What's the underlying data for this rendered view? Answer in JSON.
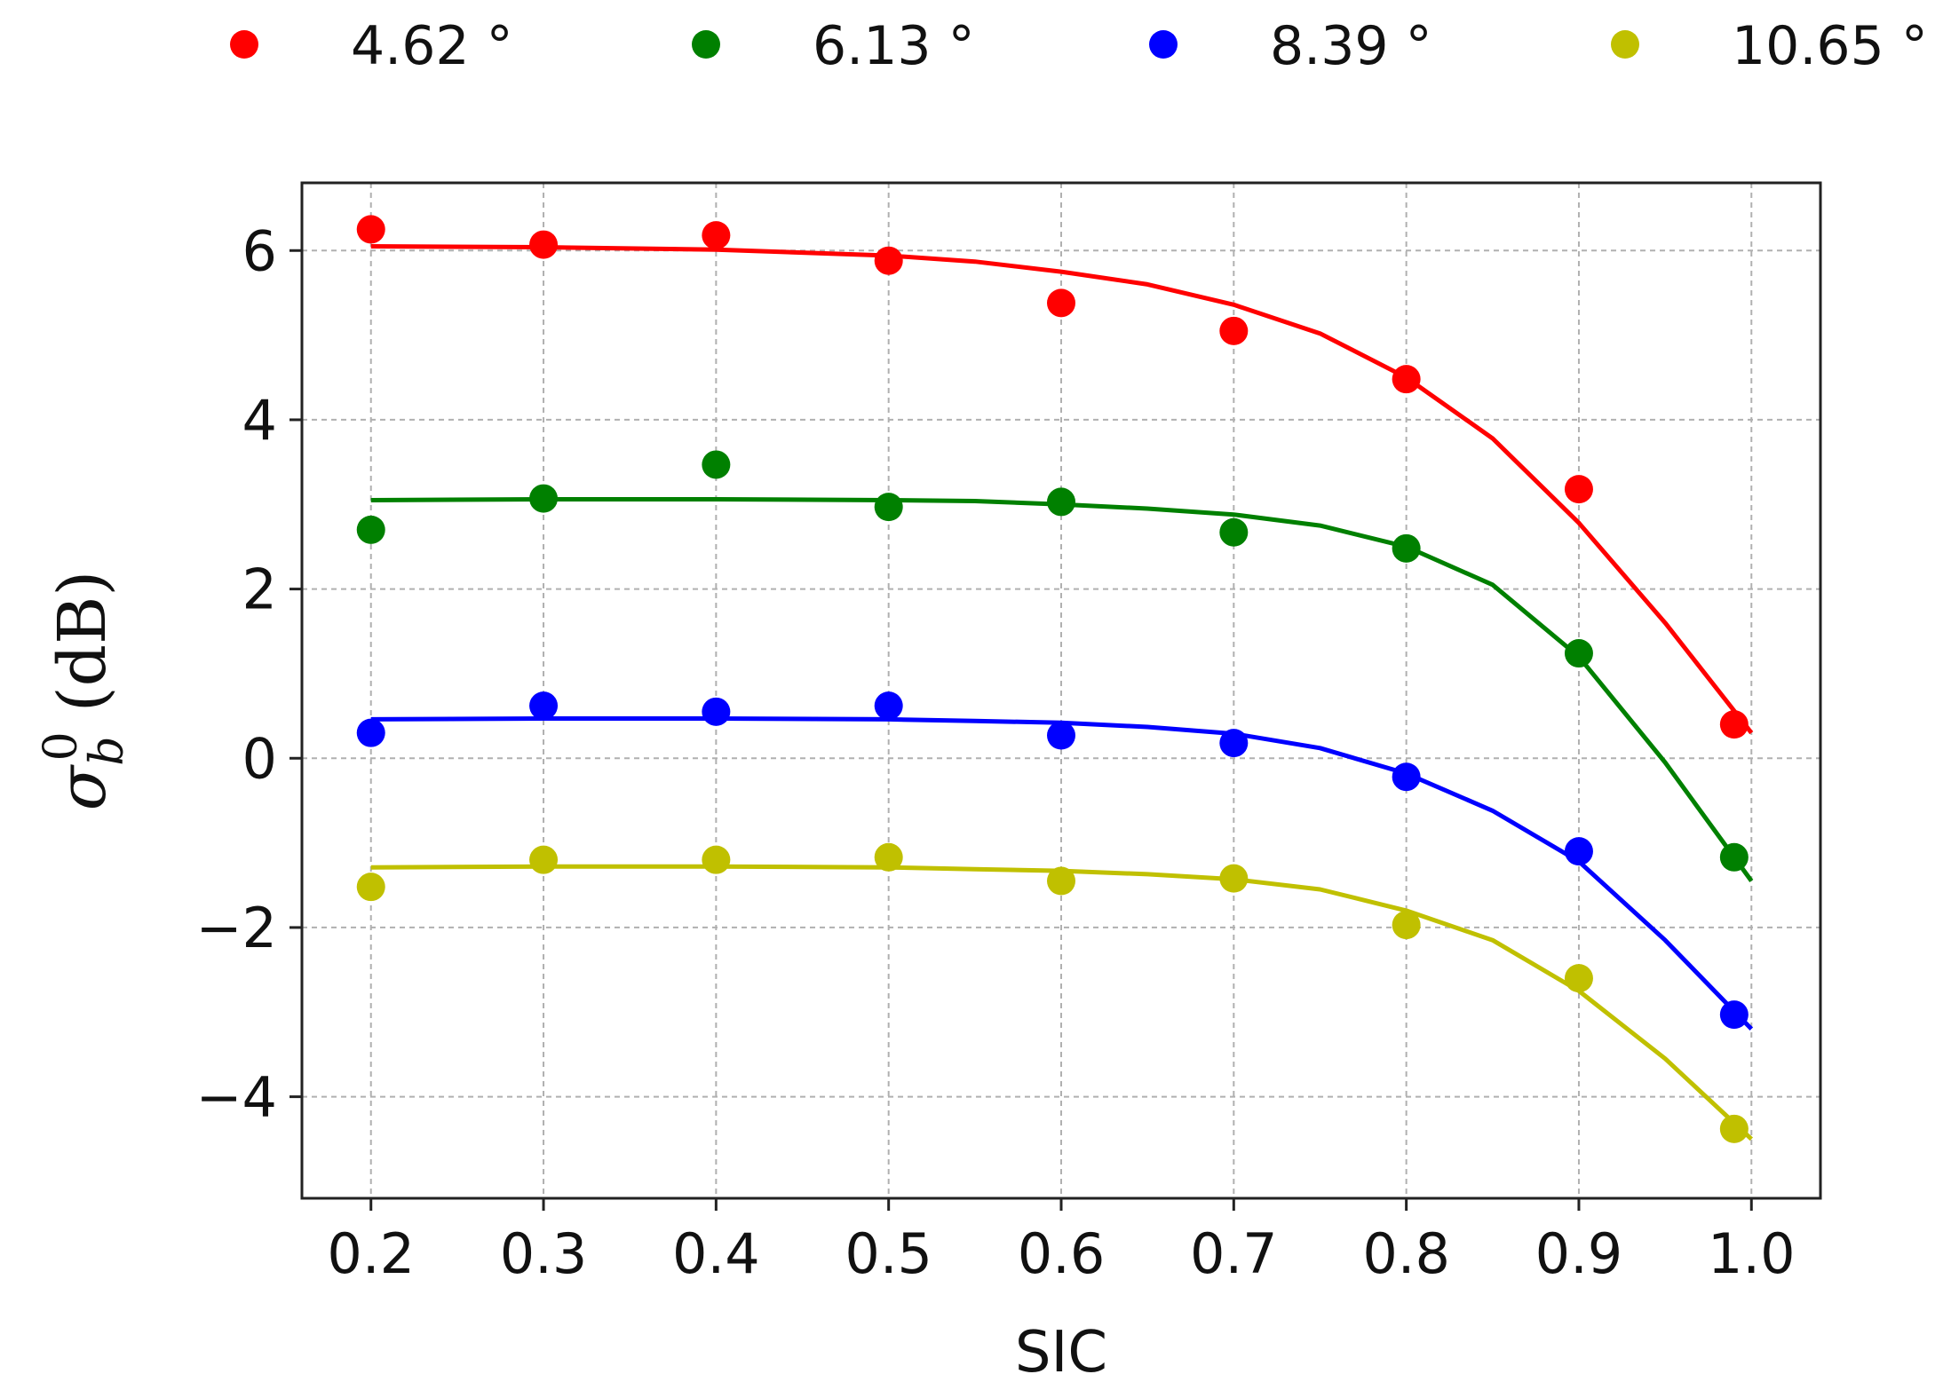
{
  "chart_data": {
    "type": "scatter",
    "xlabel": "SIC",
    "ylabel": "σ",
    "ylabel_sup": "0",
    "ylabel_sub": "b",
    "ylabel_unit": "(dB)",
    "xlim": [
      0.16,
      1.04
    ],
    "ylim": [
      -5.2,
      6.8
    ],
    "x_ticks": [
      0.2,
      0.3,
      0.4,
      0.5,
      0.6,
      0.7,
      0.8,
      0.9,
      1.0
    ],
    "x_tick_labels": [
      "0.2",
      "0.3",
      "0.4",
      "0.5",
      "0.6",
      "0.7",
      "0.8",
      "0.9",
      "1.0"
    ],
    "y_ticks": [
      -4,
      -2,
      0,
      2,
      4,
      6
    ],
    "y_tick_labels": [
      "−4",
      "−2",
      "0",
      "2",
      "4",
      "6"
    ],
    "grid": true,
    "legend_position": "top",
    "series": [
      {
        "name": "4.62 °",
        "color": "#ff0000",
        "x": [
          0.2,
          0.3,
          0.4,
          0.5,
          0.6,
          0.7,
          0.8,
          0.9,
          0.99
        ],
        "points": [
          6.25,
          6.07,
          6.18,
          5.88,
          5.38,
          5.05,
          4.48,
          3.18,
          0.4
        ],
        "fit_x": [
          0.2,
          0.3,
          0.4,
          0.5,
          0.55,
          0.6,
          0.65,
          0.7,
          0.75,
          0.8,
          0.85,
          0.9,
          0.95,
          1.0
        ],
        "fit_y": [
          6.05,
          6.04,
          6.01,
          5.94,
          5.87,
          5.75,
          5.6,
          5.36,
          5.02,
          4.5,
          3.78,
          2.78,
          1.6,
          0.3
        ]
      },
      {
        "name": "6.13 °",
        "color": "#008000",
        "x": [
          0.2,
          0.3,
          0.4,
          0.5,
          0.6,
          0.7,
          0.8,
          0.9,
          0.99
        ],
        "points": [
          2.7,
          3.07,
          3.47,
          2.97,
          3.03,
          2.67,
          2.48,
          1.24,
          -1.17
        ],
        "fit_x": [
          0.2,
          0.3,
          0.4,
          0.5,
          0.55,
          0.6,
          0.65,
          0.7,
          0.75,
          0.8,
          0.85,
          0.9,
          0.95,
          1.0
        ],
        "fit_y": [
          3.05,
          3.06,
          3.06,
          3.05,
          3.04,
          3.0,
          2.95,
          2.88,
          2.75,
          2.5,
          2.05,
          1.2,
          -0.05,
          -1.45
        ]
      },
      {
        "name": "8.39 °",
        "color": "#0000ff",
        "x": [
          0.2,
          0.3,
          0.4,
          0.5,
          0.6,
          0.7,
          0.8,
          0.9,
          0.99
        ],
        "points": [
          0.3,
          0.62,
          0.55,
          0.62,
          0.27,
          0.18,
          -0.22,
          -1.1,
          -3.03
        ],
        "fit_x": [
          0.2,
          0.3,
          0.4,
          0.5,
          0.55,
          0.6,
          0.65,
          0.7,
          0.75,
          0.8,
          0.85,
          0.9,
          0.95,
          1.0
        ],
        "fit_y": [
          0.46,
          0.47,
          0.47,
          0.46,
          0.44,
          0.42,
          0.37,
          0.29,
          0.12,
          -0.18,
          -0.62,
          -1.22,
          -2.15,
          -3.2
        ]
      },
      {
        "name": "10.65 °",
        "color": "#c0c000",
        "x": [
          0.2,
          0.3,
          0.4,
          0.5,
          0.6,
          0.7,
          0.8,
          0.9,
          0.99
        ],
        "points": [
          -1.52,
          -1.2,
          -1.2,
          -1.17,
          -1.45,
          -1.42,
          -1.97,
          -2.6,
          -4.38
        ],
        "fit_x": [
          0.2,
          0.3,
          0.4,
          0.5,
          0.55,
          0.6,
          0.65,
          0.7,
          0.75,
          0.8,
          0.85,
          0.9,
          0.95,
          1.0
        ],
        "fit_y": [
          -1.29,
          -1.28,
          -1.28,
          -1.29,
          -1.31,
          -1.33,
          -1.37,
          -1.43,
          -1.55,
          -1.8,
          -2.15,
          -2.75,
          -3.55,
          -4.5
        ]
      }
    ]
  }
}
